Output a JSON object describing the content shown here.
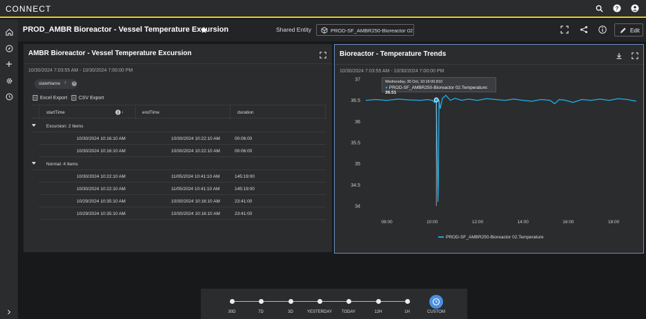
{
  "app": {
    "logo": "CONNECT"
  },
  "header": {
    "title": "PROD_AMBR Bioreactor - Vessel Temperature Excursion",
    "shared_label": "Shared Entity",
    "entity": "PROD-SF_AMBR250-Bioreactor 02",
    "edit_label": "Edit"
  },
  "table_panel": {
    "title": "AMBR Bioreactor - Vessel Temperature Excursion",
    "date_range": "10/30/2024 7:03:55 AM - 10/30/2024 7:00:00 PM",
    "group_chip": "stateName",
    "excel_export": "Excel Export",
    "csv_export": "CSV Export",
    "columns": [
      "startTime",
      "endTime",
      "duration"
    ],
    "groups": [
      {
        "label": "Excursion: 2 Items",
        "rows": [
          [
            "10/30/2024 10:16:10 AM",
            "10/30/2024 10:22:10 AM",
            "00:06:00"
          ],
          [
            "10/30/2024 10:16:10 AM",
            "10/30/2024 10:22:10 AM",
            "00:06:00"
          ]
        ]
      },
      {
        "label": "Normal: 4 Items",
        "rows": [
          [
            "10/30/2024 10:22:10 AM",
            "11/05/2024 10:41:10 AM",
            "145:19:00"
          ],
          [
            "10/30/2024 10:22:10 AM",
            "11/05/2024 10:41:10 AM",
            "145:19:00"
          ],
          [
            "10/29/2024 10:35:10 AM",
            "10/30/2024 10:16:10 AM",
            "23:41:00"
          ],
          [
            "10/29/2024 10:35:10 AM",
            "10/30/2024 10:16:10 AM",
            "23:41:00"
          ]
        ]
      }
    ]
  },
  "chart_panel": {
    "title": "Bioreactor - Temperature Trends",
    "date_range": "10/30/2024 7:03:55 AM - 10/30/2024 7:00:00 PM",
    "tooltip_date": "Wednesday, 30 Oct, 10:16:00.810",
    "tooltip_series": "PROD-SF_AMBR250-Bioreactor 02.Temperature:",
    "tooltip_value": "36.51"
  },
  "chart_data": {
    "type": "line",
    "title": "",
    "xlabel": "",
    "ylabel": "",
    "x_ticks": [
      "08:00",
      "10:00",
      "12:00",
      "14:00",
      "16:00",
      "18:00"
    ],
    "y_ticks": [
      "37",
      "36.5",
      "36",
      "35.5",
      "35",
      "34.5",
      "34"
    ],
    "ylim": [
      34,
      37
    ],
    "xlim": [
      7.07,
      19.0
    ],
    "grid": false,
    "legend": "bottom-center",
    "colors": {
      "series": "#22a7e0"
    },
    "series": [
      {
        "name": "PROD-SF_AMBR250-Bioreactor 02.Temperature",
        "x": [
          7.07,
          7.5,
          8.0,
          8.5,
          9.0,
          9.5,
          9.8,
          10.0,
          10.1,
          10.18,
          10.25,
          10.27,
          10.3,
          10.35,
          10.45,
          10.6,
          10.8,
          11.0,
          11.3,
          11.6,
          12.0,
          12.4,
          12.8,
          13.2,
          13.6,
          14.0,
          14.4,
          14.8,
          15.2,
          15.4,
          15.6,
          15.9,
          16.2,
          16.6,
          17.0,
          17.4,
          17.8,
          18.2,
          18.6,
          19.0
        ],
        "values": [
          36.5,
          36.52,
          36.5,
          36.53,
          36.51,
          36.5,
          36.52,
          36.5,
          36.45,
          36.52,
          34.1,
          34.5,
          36.51,
          36.3,
          36.55,
          36.62,
          36.5,
          36.55,
          36.5,
          36.53,
          36.5,
          36.54,
          36.52,
          36.5,
          36.53,
          36.5,
          36.48,
          36.52,
          36.5,
          36.42,
          36.52,
          36.5,
          36.45,
          36.52,
          36.5,
          36.53,
          36.5,
          36.54,
          36.52,
          36.48
        ]
      }
    ]
  },
  "timebar": {
    "labels": [
      "30D",
      "7D",
      "3D",
      "YESTERDAY",
      "TODAY",
      "12H",
      "1H",
      "CUSTOM"
    ]
  }
}
